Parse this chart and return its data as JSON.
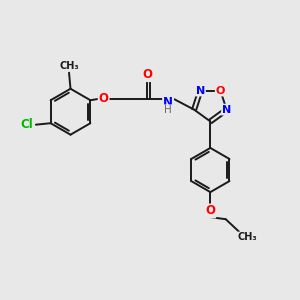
{
  "bg_color": "#e8e8e8",
  "bond_color": "#1a1a1a",
  "bond_width": 1.4,
  "atom_colors": {
    "O": "#ff0000",
    "N": "#0000ff",
    "Cl": "#00bb00",
    "C": "#1a1a1a",
    "H": "#666666"
  },
  "font_size": 8.5,
  "fig_size": [
    3.0,
    3.0
  ],
  "dpi": 100
}
